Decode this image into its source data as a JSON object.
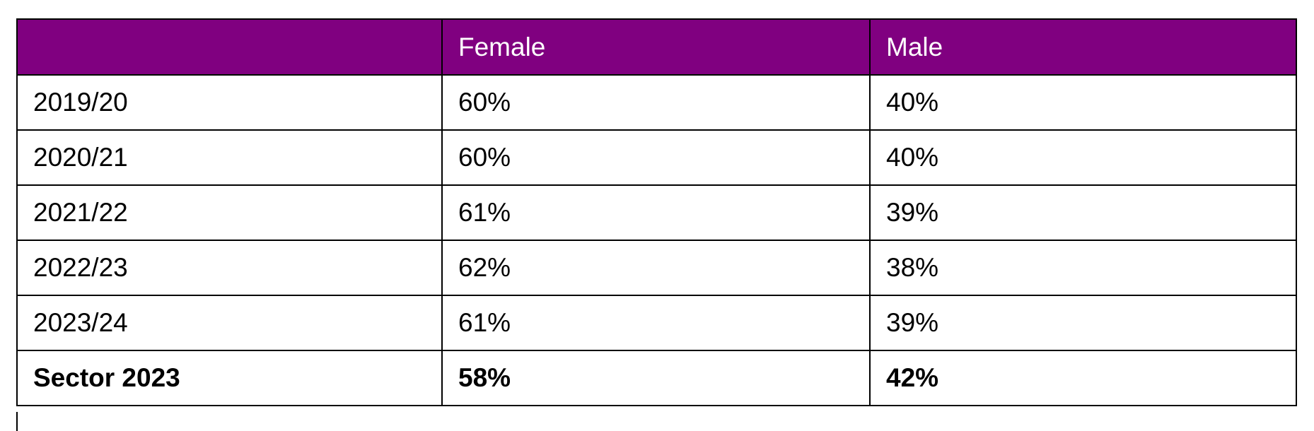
{
  "table": {
    "header": [
      "Female",
      "Male"
    ],
    "rows": [
      [
        "2019/20",
        "60%",
        "40%"
      ],
      [
        "2020/21",
        "60%",
        "40%"
      ],
      [
        "2021/22",
        "61%",
        "39%"
      ],
      [
        "2022/23",
        "62%",
        "38%"
      ],
      [
        "2023/24",
        "61%",
        "39%"
      ],
      [
        "Sector 2023",
        "58%",
        "42%"
      ]
    ]
  }
}
